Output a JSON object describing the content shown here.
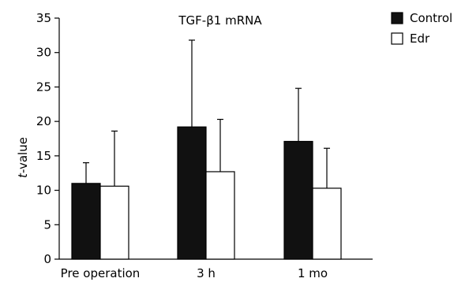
{
  "chart_data": {
    "type": "bar",
    "title": "TGF-β1 mRNA",
    "ylabel": "t-value",
    "ylabel_italic_prefix": "t",
    "ylabel_suffix": "-value",
    "xlabel": "",
    "categories": [
      "Pre operation",
      "3 h",
      "1 mo"
    ],
    "ylim": [
      0,
      35
    ],
    "yticks": [
      0,
      5,
      10,
      15,
      20,
      25,
      30,
      35
    ],
    "grid": false,
    "legend_position": "top-right",
    "series": [
      {
        "name": "Control",
        "fill": "#111111",
        "values": [
          11.0,
          19.2,
          17.1
        ],
        "error_upper": [
          14.0,
          31.8,
          24.8
        ]
      },
      {
        "name": "Edr",
        "fill": "#ffffff",
        "values": [
          10.6,
          12.7,
          10.3
        ],
        "error_upper": [
          18.6,
          20.3,
          16.1
        ]
      }
    ]
  }
}
